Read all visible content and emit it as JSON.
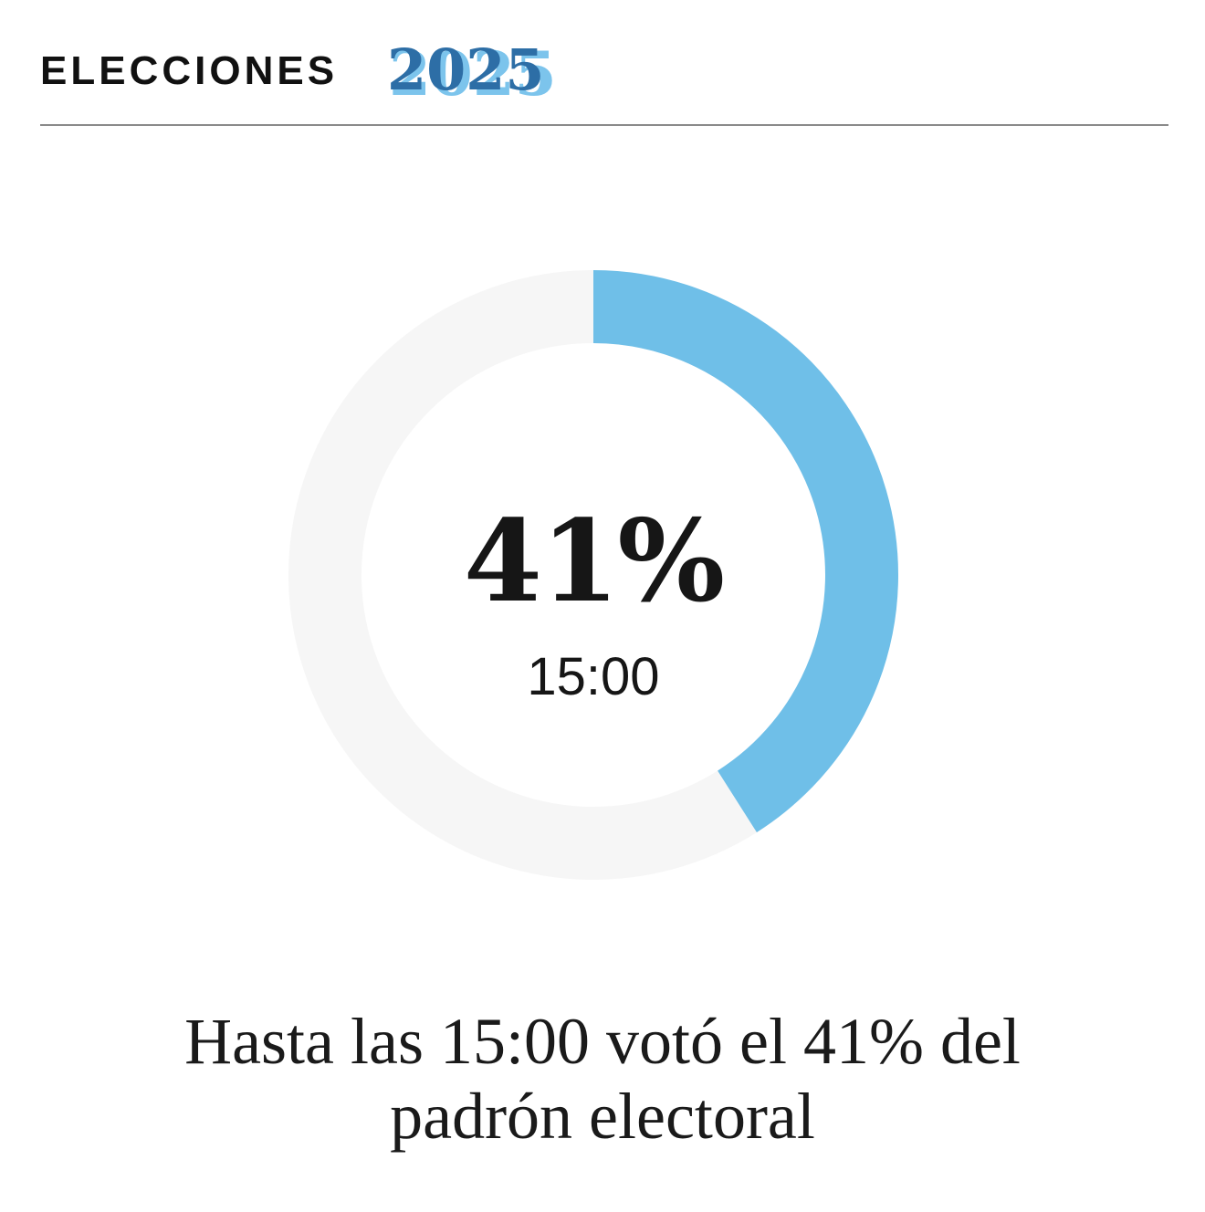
{
  "header": {
    "title": "ELECCIONES",
    "year": "2025",
    "colors": {
      "year_dark": "#2d6ea6",
      "year_light": "#7cc4ec"
    }
  },
  "chart_data": {
    "type": "pie",
    "subtype": "donut",
    "value": 41,
    "unit": "%",
    "center_label": "41%",
    "center_sublabel": "15:00",
    "colors": {
      "fill": "#6fbfe8",
      "track": "#f6f6f6"
    }
  },
  "caption": {
    "text": "Hasta las 15:00 votó el 41% del padrón electoral"
  }
}
